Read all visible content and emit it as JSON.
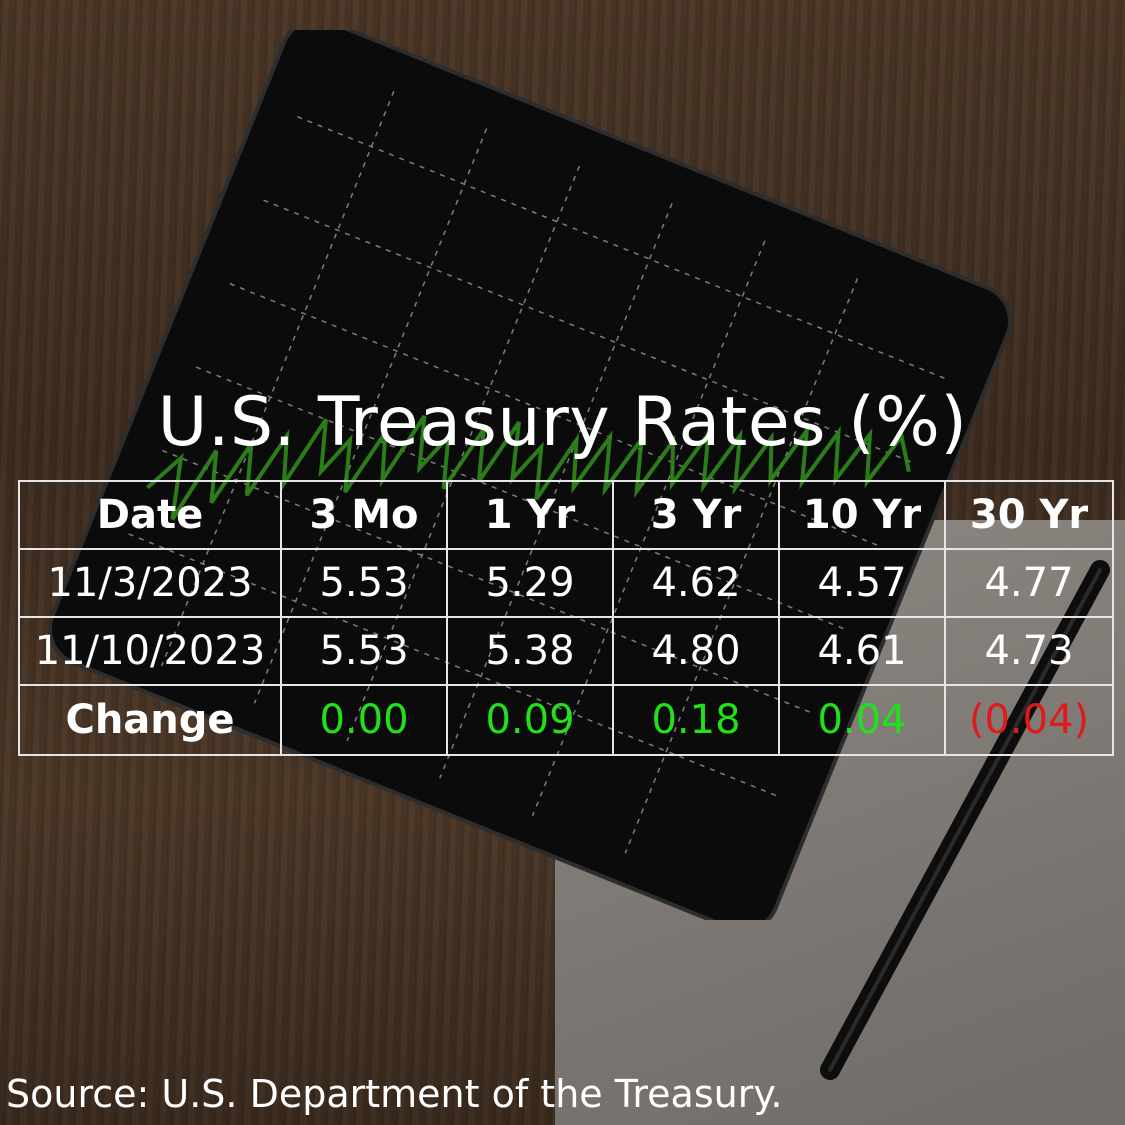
{
  "title": "U.S. Treasury Rates (%)",
  "table": {
    "headers": [
      "Date",
      "3 Mo",
      "1 Yr",
      "3 Yr",
      "10 Yr",
      "30 Yr"
    ],
    "rows": [
      [
        "11/3/2023",
        "5.53",
        "5.29",
        "4.62",
        "4.57",
        "4.77"
      ],
      [
        "11/10/2023",
        "5.53",
        "5.38",
        "4.80",
        "4.61",
        "4.73"
      ]
    ],
    "change": {
      "label": "Change",
      "values": [
        "0.00",
        "0.09",
        "0.18",
        "0.04",
        "(0.04)"
      ]
    }
  },
  "source": "Source: U.S. Department of the Treasury.",
  "colors": {
    "positive": "#22e01a",
    "negative": "#e01a1a"
  }
}
